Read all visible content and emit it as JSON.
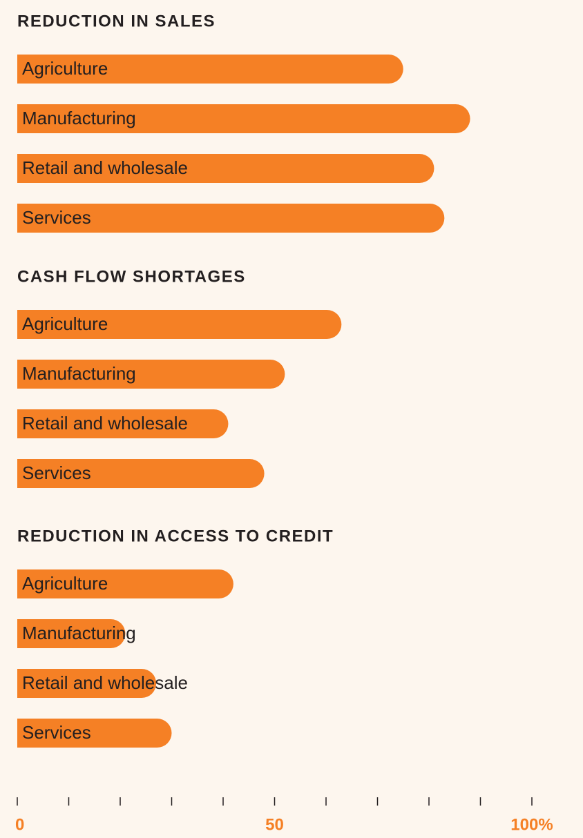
{
  "chart_data": {
    "type": "bar",
    "orientation": "horizontal",
    "color": "#f58025",
    "xlim": [
      0,
      100
    ],
    "xticks": [
      0,
      50,
      {
        "value": 100,
        "label": "100%"
      }
    ],
    "xminorticks": [
      10,
      20,
      30,
      40,
      60,
      70,
      80,
      90
    ],
    "groups": [
      {
        "title": "REDUCTION IN SALES",
        "categories": [
          "Agriculture",
          "Manufacturing",
          "Retail and wholesale",
          "Services"
        ],
        "values": [
          75,
          88,
          81,
          83
        ]
      },
      {
        "title": "CASH FLOW SHORTAGES",
        "categories": [
          "Agriculture",
          "Manufacturing",
          "Retail and wholesale",
          "Services"
        ],
        "values": [
          63,
          52,
          41,
          48
        ]
      },
      {
        "title": "REDUCTION IN ACCESS TO CREDIT",
        "categories": [
          "Agriculture",
          "Manufacturing",
          "Retail and wholesale",
          "Services"
        ],
        "values": [
          42,
          21,
          27,
          30
        ]
      }
    ]
  }
}
